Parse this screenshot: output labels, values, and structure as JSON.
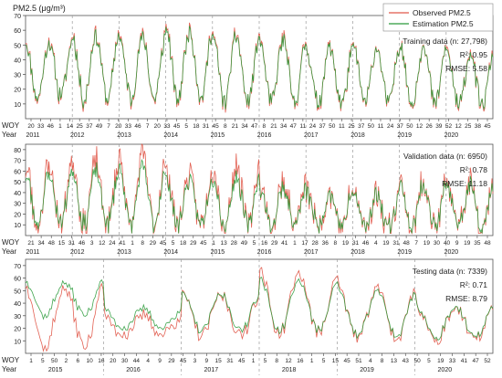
{
  "figure": {
    "ylabel_html": "PM2.5 (μg/m³)",
    "row_label_week": "WOY",
    "row_label_year": "Year"
  },
  "legend": {
    "items": [
      {
        "label": "Observed PM2.5",
        "color": "#e0584a"
      },
      {
        "label": "Estimation PM2.5",
        "color": "#2a9a3a"
      }
    ]
  },
  "chart_data": [
    {
      "type": "line",
      "panel": "training",
      "annotation": [
        "Training data (n: 27,798)",
        "R²: 0.95",
        "RMSE: 5.58"
      ],
      "ylim": [
        0,
        70
      ],
      "yticks": [
        10,
        20,
        30,
        40,
        50,
        60,
        70
      ],
      "week_ticks": [
        "20",
        "33",
        "46",
        "1",
        "14",
        "25",
        "37",
        "49",
        "7",
        "20",
        "33",
        "46",
        "7",
        "20",
        "33",
        "45",
        "5",
        "18",
        "31",
        "45",
        "8",
        "21",
        "34",
        "47",
        "8",
        "21",
        "34",
        "47",
        "11",
        "24",
        "37",
        "50",
        "11",
        "25",
        "37",
        "50",
        "11",
        "24",
        "37",
        "50",
        "12",
        "26",
        "39",
        "52",
        "12",
        "25",
        "38",
        "45"
      ],
      "year_ticks": [
        "2011",
        "2012",
        "2013",
        "2014",
        "2015",
        "2016",
        "2017",
        "2018",
        "2019",
        "2020"
      ],
      "x_weeks": 520,
      "series": [
        {
          "name": "Observed PM2.5",
          "color": "#e0584a",
          "seed": 11,
          "base": 24,
          "amp": 24,
          "noise": 6,
          "peaks": [
            60,
            66,
            65,
            70,
            65,
            62,
            56,
            56,
            58,
            52
          ],
          "troughs": [
            14,
            12,
            13,
            12,
            11,
            10,
            9,
            10,
            9,
            8
          ]
        },
        {
          "name": "Estimation PM2.5",
          "color": "#2a9a3a",
          "seed": 11,
          "base": 24,
          "amp": 24,
          "noise": 5,
          "peaks": [
            58,
            64,
            63,
            68,
            63,
            60,
            55,
            55,
            57,
            50
          ],
          "troughs": [
            15,
            13,
            14,
            13,
            12,
            11,
            10,
            11,
            10,
            9
          ]
        }
      ]
    },
    {
      "type": "line",
      "panel": "validation",
      "annotation": [
        "Validation data (n: 6950)",
        "R²: 0.78",
        "RMSE: 11.18"
      ],
      "ylim": [
        0,
        85
      ],
      "yticks": [
        10,
        20,
        30,
        40,
        50,
        60,
        70,
        80
      ],
      "week_ticks": [
        "21",
        "34",
        "48",
        "15",
        "31",
        "46",
        "3",
        "12",
        "24",
        "41",
        "1",
        "8",
        "29",
        "45",
        "5",
        "18",
        "29",
        "45",
        "1",
        "13",
        "28",
        "49",
        "5",
        "16",
        "29",
        "41",
        "1",
        "17",
        "28",
        "36",
        "8",
        "19",
        "31",
        "46",
        "4",
        "19",
        "31",
        "48",
        "7",
        "19",
        "30",
        "40",
        "9",
        "19",
        "35",
        "48"
      ],
      "year_ticks": [
        "2011",
        "2012",
        "2013",
        "2014",
        "2015",
        "2016",
        "2017",
        "2018",
        "2019",
        "2020"
      ],
      "x_weeks": 520,
      "series": [
        {
          "name": "Observed PM2.5",
          "color": "#e0584a",
          "seed": 23,
          "base": 25,
          "amp": 26,
          "noise": 12,
          "peaks": [
            75,
            78,
            85,
            68,
            75,
            55,
            48,
            45,
            58,
            58
          ],
          "troughs": [
            10,
            9,
            8,
            9,
            9,
            8,
            8,
            7,
            7,
            6
          ]
        },
        {
          "name": "Estimation PM2.5",
          "color": "#2a9a3a",
          "seed": 23,
          "base": 25,
          "amp": 24,
          "noise": 7,
          "peaks": [
            65,
            68,
            72,
            60,
            62,
            50,
            46,
            44,
            55,
            55
          ],
          "troughs": [
            12,
            11,
            10,
            10,
            10,
            9,
            9,
            8,
            8,
            7
          ]
        }
      ]
    },
    {
      "type": "line",
      "panel": "testing",
      "annotation": [
        "Testing data (n: 7339)",
        "R²: 0.71",
        "RMSE: 8.79"
      ],
      "ylim": [
        0,
        75
      ],
      "yticks": [
        10,
        20,
        30,
        40,
        50,
        60,
        70
      ],
      "week_ticks": [
        "1",
        "5",
        "50",
        "2",
        "6",
        "10",
        "16",
        "20",
        "30",
        "44",
        "4",
        "9",
        "29",
        "45",
        "3",
        "9",
        "15",
        "31",
        "45",
        "1",
        "5",
        "8",
        "12",
        "16",
        "1",
        "5",
        "15",
        "45",
        "51",
        "4",
        "8",
        "13",
        "43",
        "50",
        "5",
        "19",
        "33",
        "41",
        "47",
        "52"
      ],
      "year_ticks": [
        "2015",
        "2016",
        "2017",
        "2018",
        "2019",
        "2020"
      ],
      "x_weeks": 290,
      "series": [
        {
          "name": "Observed PM2.5",
          "color": "#e0584a",
          "seed": 37,
          "base": 25,
          "amp": 14,
          "noise": 5,
          "peaks": [
            62,
            32,
            52,
            72,
            58,
            42
          ],
          "troughs": [
            4,
            15,
            14,
            16,
            12,
            10
          ]
        },
        {
          "name": "Estimation PM2.5",
          "color": "#2a9a3a",
          "seed": 37,
          "base": 27,
          "amp": 13,
          "noise": 3,
          "peaks": [
            62,
            38,
            52,
            65,
            55,
            42
          ],
          "troughs": [
            30,
            20,
            18,
            18,
            14,
            12
          ]
        }
      ]
    }
  ]
}
